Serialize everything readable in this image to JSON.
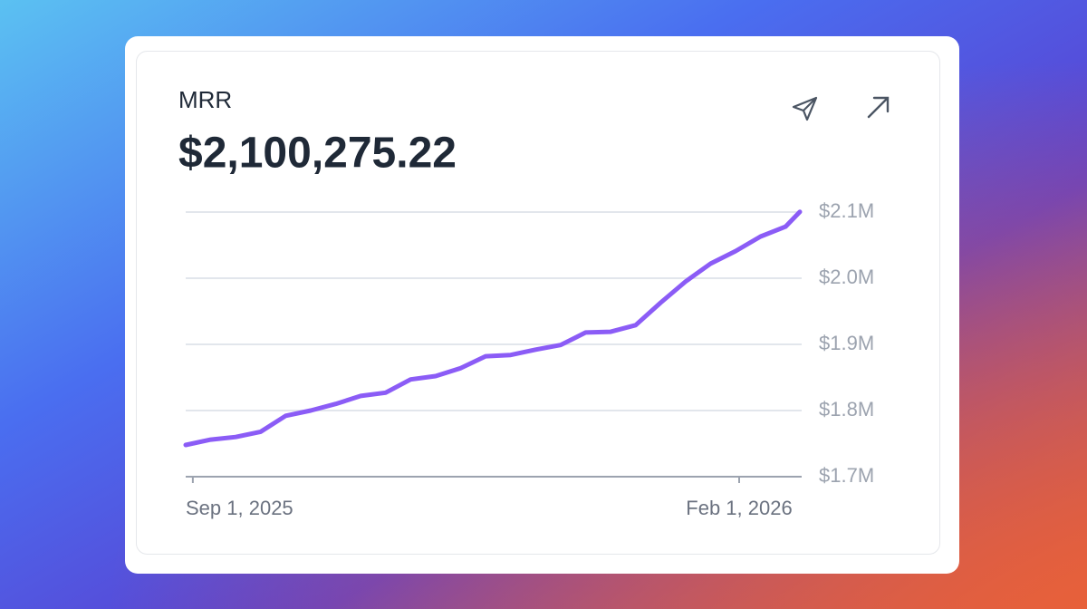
{
  "chart_data": {
    "type": "line",
    "title": "MRR",
    "subtitle": "$2,100,275.22",
    "x": [
      "2025-08-30",
      "2025-09-06",
      "2025-09-13",
      "2025-09-20",
      "2025-09-27",
      "2025-10-04",
      "2025-10-11",
      "2025-10-18",
      "2025-10-25",
      "2025-11-01",
      "2025-11-08",
      "2025-11-15",
      "2025-11-22",
      "2025-11-29",
      "2025-12-06",
      "2025-12-13",
      "2025-12-20",
      "2025-12-27",
      "2026-01-03",
      "2026-01-10",
      "2026-01-17",
      "2026-01-24",
      "2026-01-31",
      "2026-02-07",
      "2026-02-14",
      "2026-02-18"
    ],
    "series": [
      {
        "name": "MRR",
        "color": "#8b5cf6",
        "values": [
          1748000,
          1756000,
          1760000,
          1768000,
          1792000,
          1800000,
          1810000,
          1822000,
          1827000,
          1847000,
          1852000,
          1864000,
          1882000,
          1884000,
          1892000,
          1899000,
          1918000,
          1919000,
          1929000,
          1963000,
          1995000,
          2022000,
          2041000,
          2063000,
          2078000,
          2100275.22
        ]
      }
    ],
    "xlim": [
      "2025-08-30",
      "2026-02-18"
    ],
    "xticks": [
      {
        "value": "2025-09-01",
        "label": "Sep 1, 2025"
      },
      {
        "value": "2026-02-01",
        "label": "Feb 1, 2026"
      }
    ],
    "ylim": [
      1700000,
      2100000
    ],
    "yticks": [
      {
        "value": 1700000,
        "label": "$1.7M"
      },
      {
        "value": 1800000,
        "label": "$1.8M"
      },
      {
        "value": 1900000,
        "label": "$1.9M"
      },
      {
        "value": 2000000,
        "label": "$2.0M"
      },
      {
        "value": 2100000,
        "label": "$2.1M"
      }
    ],
    "grid": true
  }
}
